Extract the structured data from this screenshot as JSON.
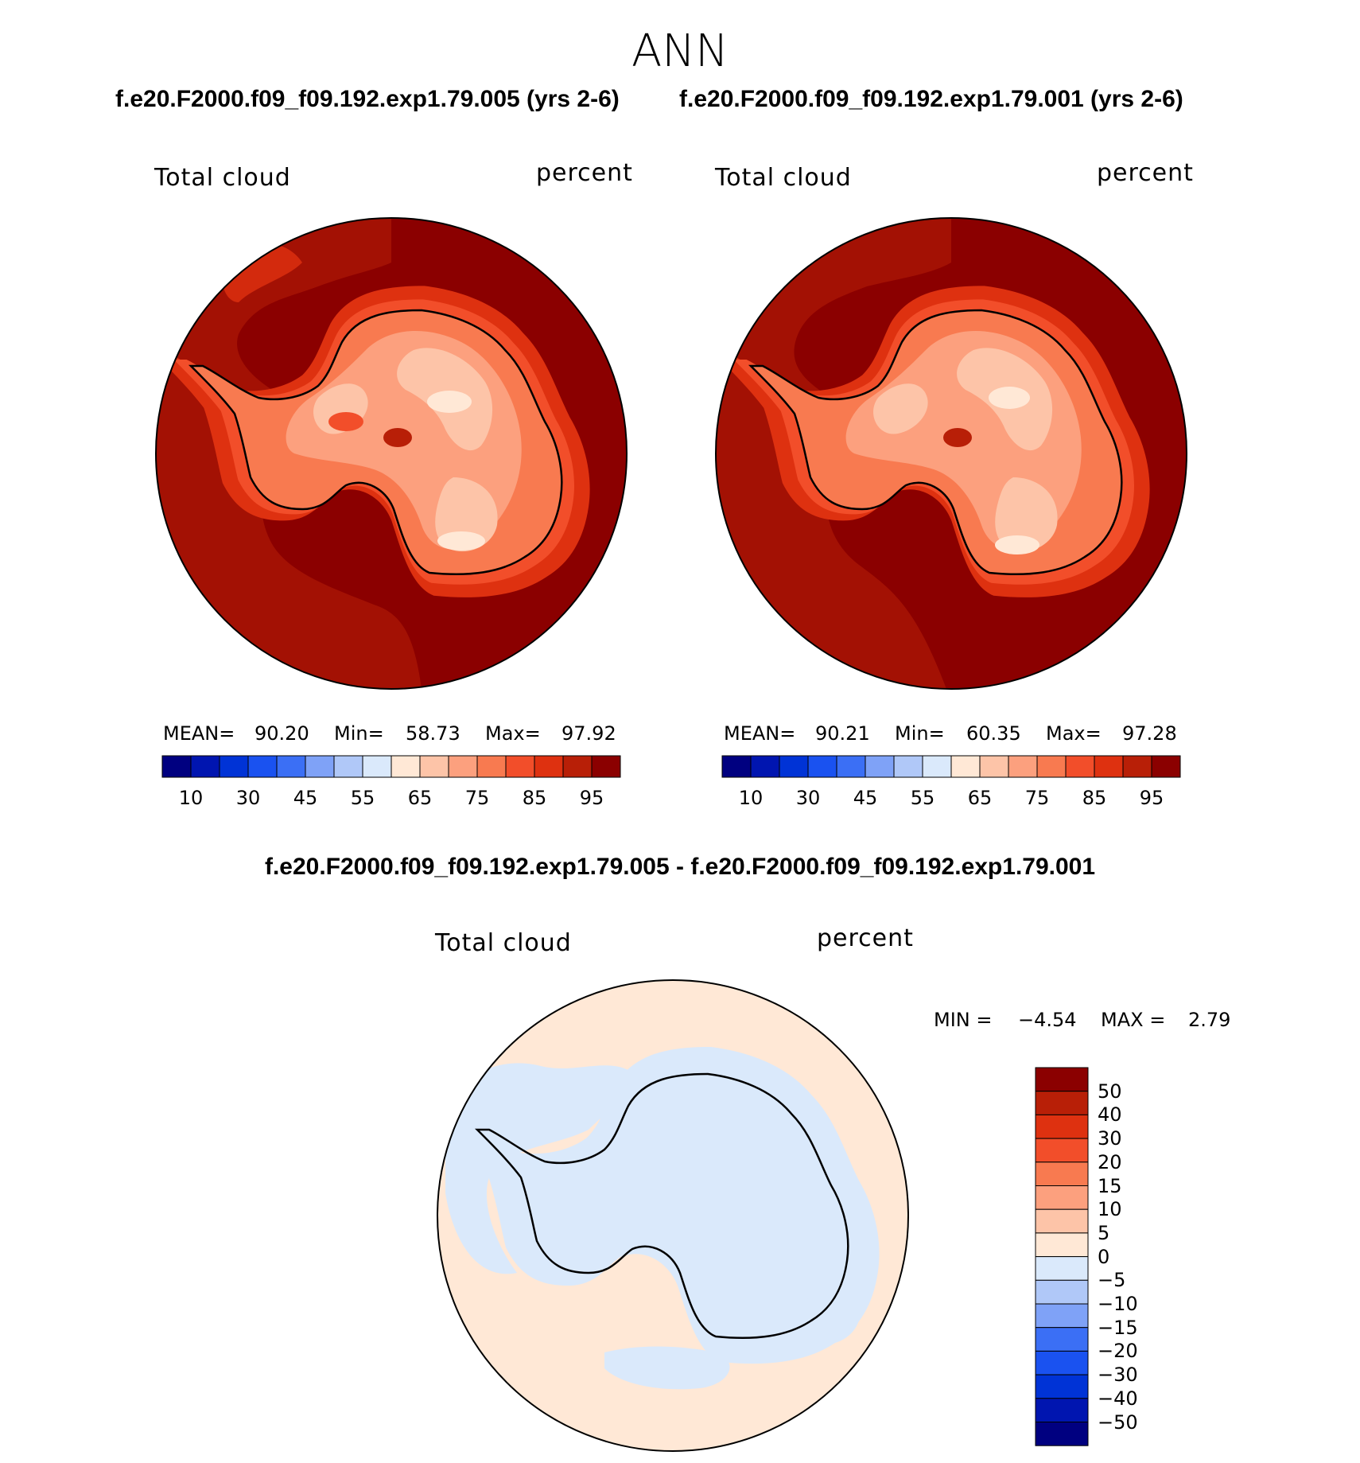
{
  "figure_title": "ANN",
  "panels": [
    {
      "header": "f.e20.F2000.f09_f09.192.exp1.79.005 (yrs 2-6)",
      "variable": "Total cloud",
      "units": "percent",
      "stats": {
        "mean_label": "MEAN=",
        "mean": "90.20",
        "min_label": "Min=",
        "min": "58.73",
        "max_label": "Max=",
        "max": "97.92"
      }
    },
    {
      "header": "f.e20.F2000.f09_f09.192.exp1.79.001 (yrs 2-6)",
      "variable": "Total cloud",
      "units": "percent",
      "stats": {
        "mean_label": "MEAN=",
        "mean": "90.21",
        "min_label": "Min=",
        "min": "60.35",
        "max_label": "Max=",
        "max": "97.28"
      }
    }
  ],
  "colorbar": {
    "colors": [
      "#000080",
      "#0015b0",
      "#0033d6",
      "#1a52f0",
      "#3b6ff5",
      "#7fa2f7",
      "#b0c8f8",
      "#dae9fb",
      "#ffe8d6",
      "#fdc4a8",
      "#fca07e",
      "#f87a50",
      "#f24e2a",
      "#de3110",
      "#b81f07",
      "#8b0000"
    ],
    "tick_labels": [
      "10",
      "30",
      "45",
      "55",
      "65",
      "75",
      "85",
      "95"
    ]
  },
  "difference": {
    "title": "f.e20.F2000.f09_f09.192.exp1.79.005 - f.e20.F2000.f09_f09.192.exp1.79.001",
    "variable": "Total cloud",
    "units": "percent",
    "min_label": "MIN =",
    "min": "−4.54",
    "max_label": "MAX =",
    "max": "2.79",
    "colorbar_colors_top_to_bottom": [
      "#8b0000",
      "#b81f07",
      "#de3110",
      "#f24e2a",
      "#f87a50",
      "#fca07e",
      "#fdc4a8",
      "#ffe8d6",
      "#dae9fb",
      "#b0c8f8",
      "#7fa2f7",
      "#3b6ff5",
      "#1a52f0",
      "#0033d6",
      "#0015b0",
      "#000080"
    ],
    "tick_labels": [
      "50",
      "40",
      "30",
      "20",
      "15",
      "10",
      "5",
      "0",
      "−5",
      "−10",
      "−15",
      "−20",
      "−30",
      "−40",
      "−50"
    ]
  }
}
